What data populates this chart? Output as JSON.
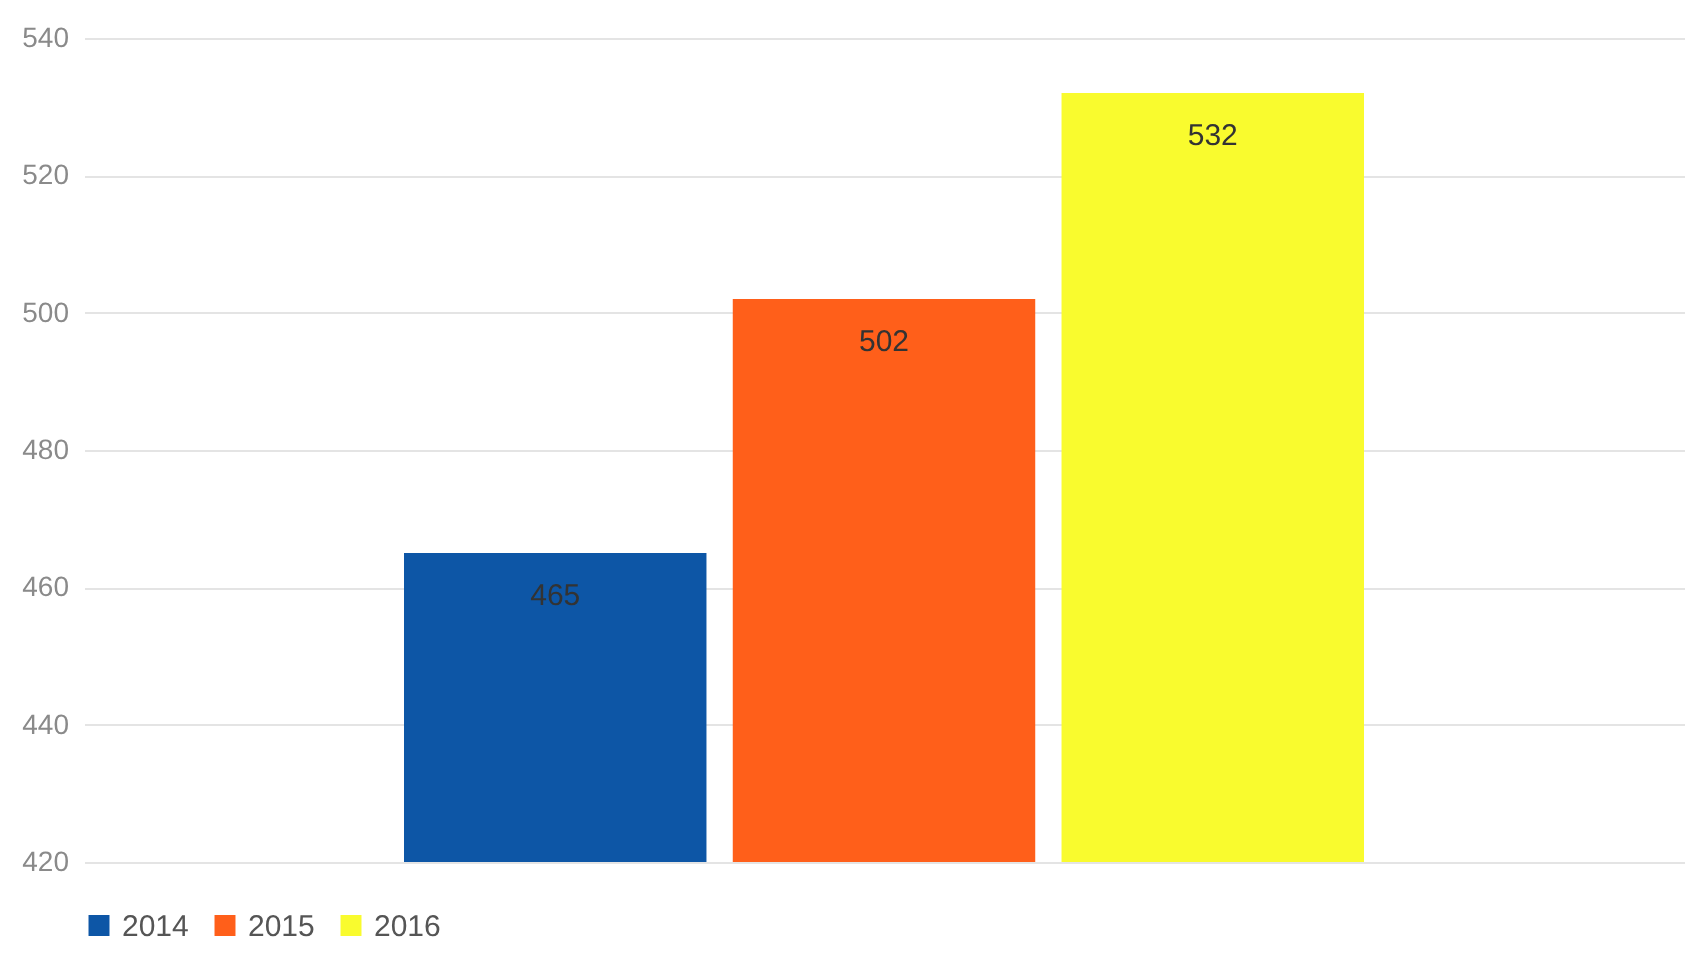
{
  "chart_data": {
    "type": "bar",
    "categories": [
      null
    ],
    "series": [
      {
        "name": "2014",
        "color": "#0d56a6",
        "values": [
          465
        ]
      },
      {
        "name": "2015",
        "color": "#ff5f1a",
        "values": [
          502
        ]
      },
      {
        "name": "2016",
        "color": "#f9fb2e",
        "values": [
          532
        ]
      }
    ],
    "ylim": [
      420,
      540
    ],
    "yticks": [
      420,
      440,
      460,
      480,
      500,
      520,
      540
    ],
    "grid": "y",
    "legend": "bottom",
    "data_labels": true
  }
}
